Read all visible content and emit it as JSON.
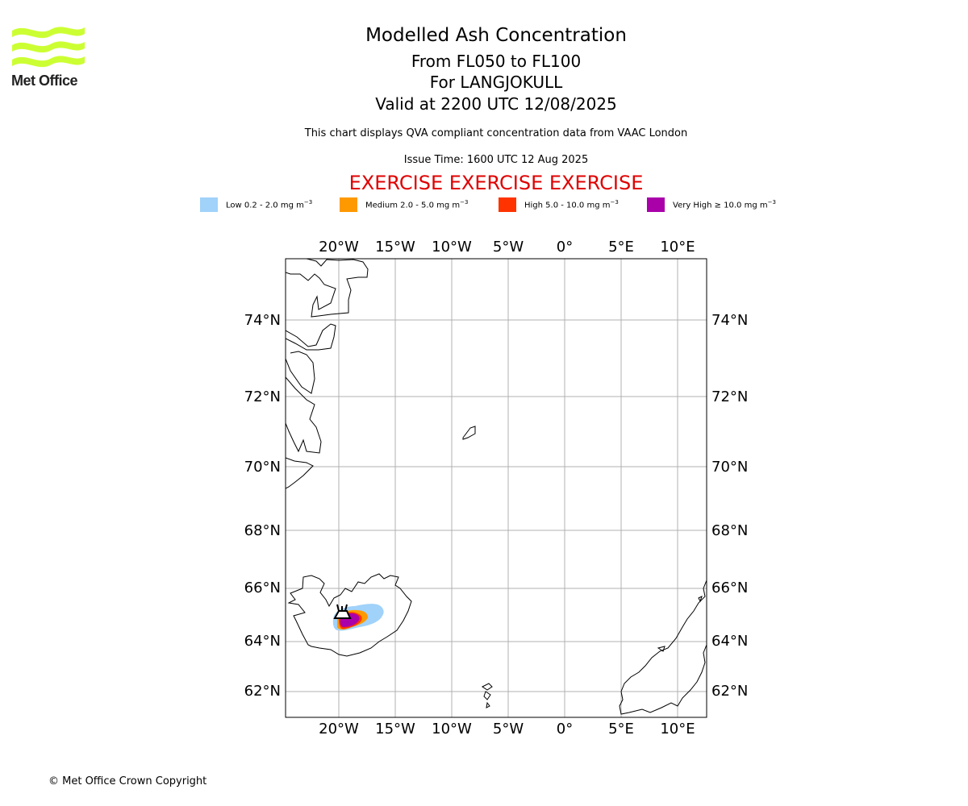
{
  "logo": {
    "text": "Met Office",
    "accent": "#ccff33"
  },
  "title": {
    "line1": "Modelled Ash Concentration",
    "line2": "From FL050 to FL100",
    "line3": "For LANGJOKULL",
    "line4": "Valid at 2200 UTC 12/08/2025"
  },
  "note": "This chart displays QVA compliant concentration data from VAAC London",
  "issue_time": "Issue Time: 1600 UTC 12 Aug 2025",
  "exercise": "EXERCISE EXERCISE EXERCISE",
  "legend": [
    {
      "prefix": "Low 0.2 - 2.0 mg m",
      "color": "#a0d2fa"
    },
    {
      "prefix": "Medium 2.0 - 5.0 mg m",
      "color": "#ff9900"
    },
    {
      "prefix": "High 5.0 - 10.0 mg m",
      "color": "#ff3300"
    },
    {
      "prefix": "Very High ≥ 10.0 mg m",
      "color": "#aa00aa"
    }
  ],
  "legend_unit_exponent": "−3",
  "map": {
    "lon_labels": [
      "20°W",
      "15°W",
      "10°W",
      "5°W",
      "0°",
      "5°E",
      "10°E"
    ],
    "lat_labels": [
      "74°N",
      "72°N",
      "70°N",
      "68°N",
      "66°N",
      "64°N",
      "62°N"
    ],
    "volcano": "LANGJOKULL"
  },
  "footer": "© Met Office Crown Copyright"
}
